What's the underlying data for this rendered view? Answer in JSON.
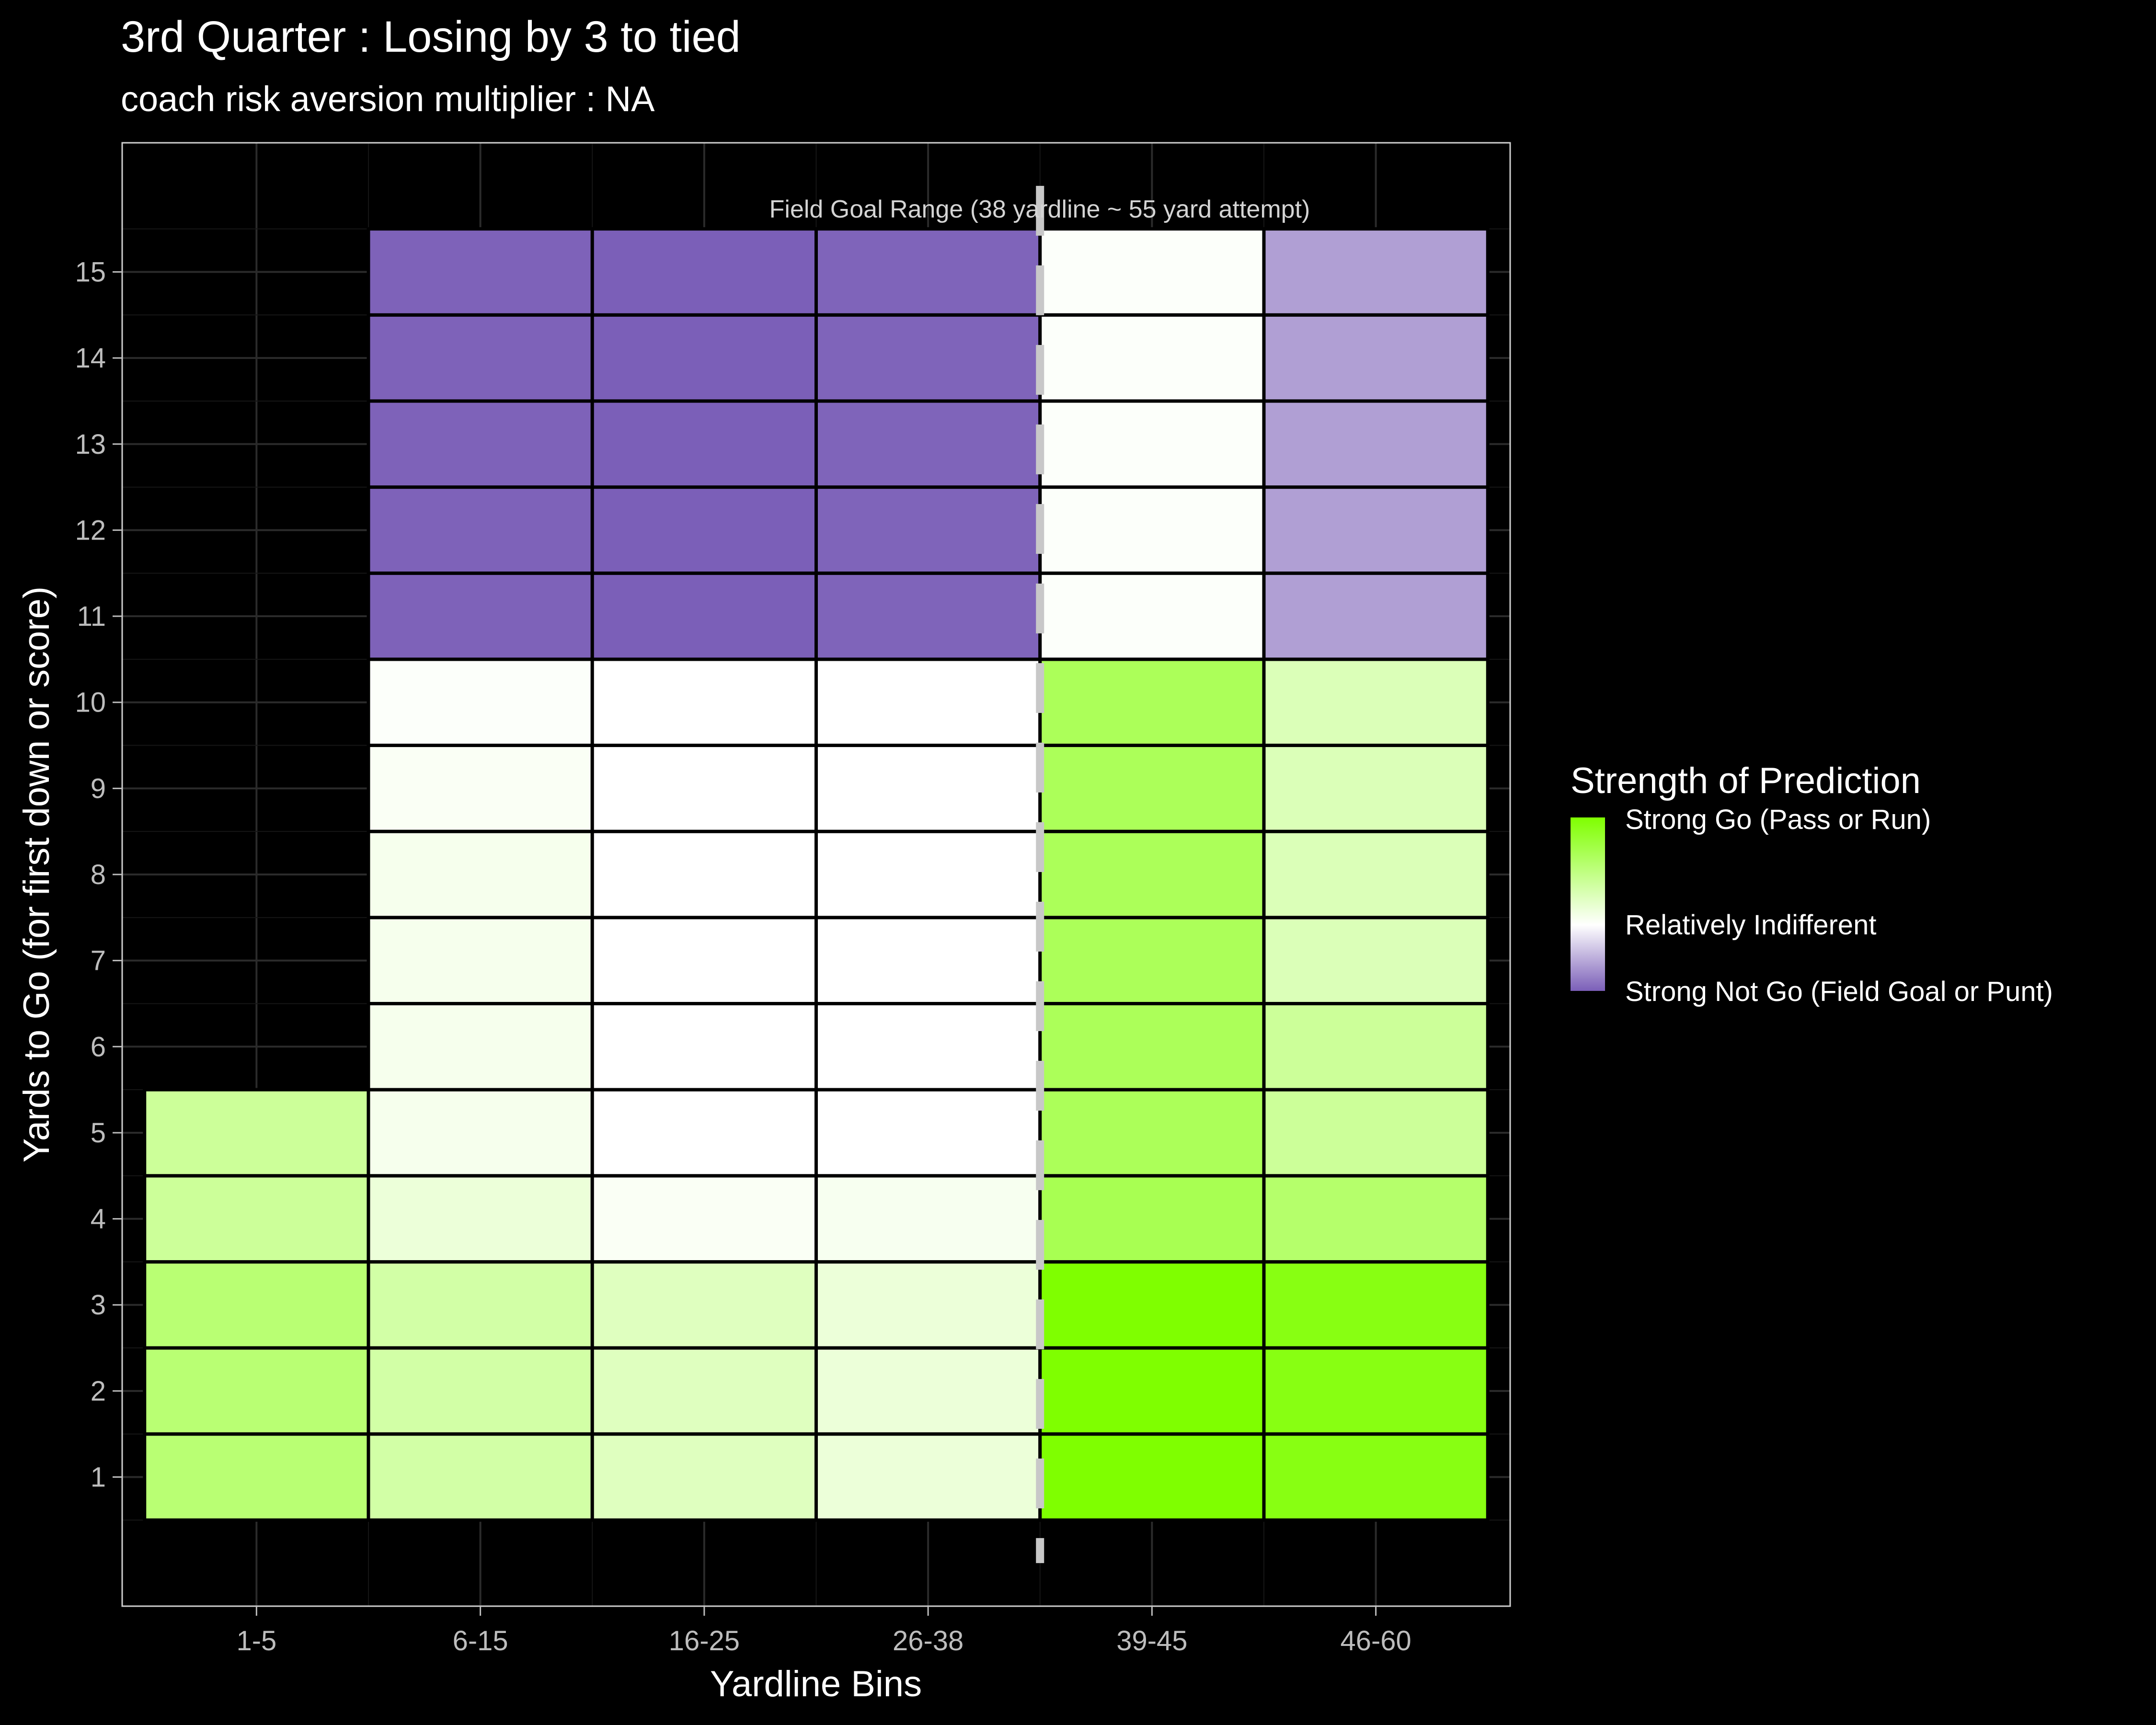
{
  "chart_data": {
    "type": "heatmap",
    "title": "3rd Quarter : Losing by 3 to tied",
    "subtitle": "coach risk aversion multiplier : NA",
    "xlabel": "Yardline Bins",
    "ylabel": "Yards to Go (for first down or score)",
    "x_categories": [
      "1-5",
      "6-15",
      "16-25",
      "26-38",
      "39-45",
      "46-60"
    ],
    "y_ticks": [
      1,
      2,
      3,
      4,
      5,
      6,
      7,
      8,
      9,
      10,
      11,
      12,
      13,
      14,
      15
    ],
    "ylim": [
      -0.5,
      16.5
    ],
    "grid": true,
    "color_scale": {
      "go": "#7fff00",
      "indifferent": "#ffffff",
      "not_go": "#7b5fb8"
    },
    "strength_scale": "value in [-1, 1]; +1 = Strong Go, 0 = Relatively Indifferent, -1 = Strong Not Go",
    "cells": [
      {
        "x": "1-5",
        "y": 1,
        "value": 0.55
      },
      {
        "x": "1-5",
        "y": 2,
        "value": 0.55
      },
      {
        "x": "1-5",
        "y": 3,
        "value": 0.55
      },
      {
        "x": "1-5",
        "y": 4,
        "value": 0.4
      },
      {
        "x": "1-5",
        "y": 5,
        "value": 0.4
      },
      {
        "x": "6-15",
        "y": 1,
        "value": 0.35
      },
      {
        "x": "6-15",
        "y": 2,
        "value": 0.35
      },
      {
        "x": "6-15",
        "y": 3,
        "value": 0.35
      },
      {
        "x": "6-15",
        "y": 4,
        "value": 0.15
      },
      {
        "x": "6-15",
        "y": 5,
        "value": 0.07
      },
      {
        "x": "6-15",
        "y": 6,
        "value": 0.07
      },
      {
        "x": "6-15",
        "y": 7,
        "value": 0.07
      },
      {
        "x": "6-15",
        "y": 8,
        "value": 0.07
      },
      {
        "x": "6-15",
        "y": 9,
        "value": 0.04
      },
      {
        "x": "6-15",
        "y": 10,
        "value": 0.02
      },
      {
        "x": "6-15",
        "y": 11,
        "value": -0.98
      },
      {
        "x": "6-15",
        "y": 12,
        "value": -0.98
      },
      {
        "x": "6-15",
        "y": 13,
        "value": -0.98
      },
      {
        "x": "6-15",
        "y": 14,
        "value": -0.98
      },
      {
        "x": "6-15",
        "y": 15,
        "value": -0.98
      },
      {
        "x": "16-25",
        "y": 1,
        "value": 0.25
      },
      {
        "x": "16-25",
        "y": 2,
        "value": 0.25
      },
      {
        "x": "16-25",
        "y": 3,
        "value": 0.25
      },
      {
        "x": "16-25",
        "y": 4,
        "value": 0.04
      },
      {
        "x": "16-25",
        "y": 5,
        "value": 0.0
      },
      {
        "x": "16-25",
        "y": 6,
        "value": 0.0
      },
      {
        "x": "16-25",
        "y": 7,
        "value": 0.0
      },
      {
        "x": "16-25",
        "y": 8,
        "value": 0.0
      },
      {
        "x": "16-25",
        "y": 9,
        "value": 0.0
      },
      {
        "x": "16-25",
        "y": 10,
        "value": 0.0
      },
      {
        "x": "16-25",
        "y": 11,
        "value": -1.0
      },
      {
        "x": "16-25",
        "y": 12,
        "value": -1.0
      },
      {
        "x": "16-25",
        "y": 13,
        "value": -1.0
      },
      {
        "x": "16-25",
        "y": 14,
        "value": -1.0
      },
      {
        "x": "16-25",
        "y": 15,
        "value": -1.0
      },
      {
        "x": "26-38",
        "y": 1,
        "value": 0.15
      },
      {
        "x": "26-38",
        "y": 2,
        "value": 0.15
      },
      {
        "x": "26-38",
        "y": 3,
        "value": 0.15
      },
      {
        "x": "26-38",
        "y": 4,
        "value": 0.06
      },
      {
        "x": "26-38",
        "y": 5,
        "value": 0.0
      },
      {
        "x": "26-38",
        "y": 6,
        "value": 0.0
      },
      {
        "x": "26-38",
        "y": 7,
        "value": 0.0
      },
      {
        "x": "26-38",
        "y": 8,
        "value": 0.0
      },
      {
        "x": "26-38",
        "y": 9,
        "value": 0.0
      },
      {
        "x": "26-38",
        "y": 10,
        "value": 0.0
      },
      {
        "x": "26-38",
        "y": 11,
        "value": -0.97
      },
      {
        "x": "26-38",
        "y": 12,
        "value": -0.97
      },
      {
        "x": "26-38",
        "y": 13,
        "value": -0.97
      },
      {
        "x": "26-38",
        "y": 14,
        "value": -0.97
      },
      {
        "x": "26-38",
        "y": 15,
        "value": -0.97
      },
      {
        "x": "39-45",
        "y": 1,
        "value": 1.0
      },
      {
        "x": "39-45",
        "y": 2,
        "value": 1.0
      },
      {
        "x": "39-45",
        "y": 3,
        "value": 1.0
      },
      {
        "x": "39-45",
        "y": 4,
        "value": 0.68
      },
      {
        "x": "39-45",
        "y": 5,
        "value": 0.65
      },
      {
        "x": "39-45",
        "y": 6,
        "value": 0.65
      },
      {
        "x": "39-45",
        "y": 7,
        "value": 0.65
      },
      {
        "x": "39-45",
        "y": 8,
        "value": 0.65
      },
      {
        "x": "39-45",
        "y": 9,
        "value": 0.65
      },
      {
        "x": "39-45",
        "y": 10,
        "value": 0.65
      },
      {
        "x": "39-45",
        "y": 11,
        "value": 0.02
      },
      {
        "x": "39-45",
        "y": 12,
        "value": 0.02
      },
      {
        "x": "39-45",
        "y": 13,
        "value": 0.02
      },
      {
        "x": "39-45",
        "y": 14,
        "value": 0.02
      },
      {
        "x": "39-45",
        "y": 15,
        "value": 0.02
      },
      {
        "x": "46-60",
        "y": 1,
        "value": 0.93
      },
      {
        "x": "46-60",
        "y": 2,
        "value": 0.93
      },
      {
        "x": "46-60",
        "y": 3,
        "value": 0.93
      },
      {
        "x": "46-60",
        "y": 4,
        "value": 0.58
      },
      {
        "x": "46-60",
        "y": 5,
        "value": 0.4
      },
      {
        "x": "46-60",
        "y": 6,
        "value": 0.4
      },
      {
        "x": "46-60",
        "y": 7,
        "value": 0.28
      },
      {
        "x": "46-60",
        "y": 8,
        "value": 0.28
      },
      {
        "x": "46-60",
        "y": 9,
        "value": 0.28
      },
      {
        "x": "46-60",
        "y": 10,
        "value": 0.28
      },
      {
        "x": "46-60",
        "y": 11,
        "value": -0.6
      },
      {
        "x": "46-60",
        "y": 12,
        "value": -0.6
      },
      {
        "x": "46-60",
        "y": 13,
        "value": -0.6
      },
      {
        "x": "46-60",
        "y": 14,
        "value": -0.6
      },
      {
        "x": "46-60",
        "y": 15,
        "value": -0.6
      }
    ],
    "reference_line": {
      "position": "between 26-38 and 39-45",
      "style": "dashed",
      "color": "#c8c8c8",
      "label": "Field Goal Range (38 yardline ~ 55 yard attempt)"
    },
    "legend": {
      "title": "Strength of Prediction",
      "placement": "right",
      "labels": [
        "Strong Go (Pass or Run)",
        "Relatively Indifferent",
        "Strong Not Go (Field Goal or Punt)"
      ]
    }
  }
}
